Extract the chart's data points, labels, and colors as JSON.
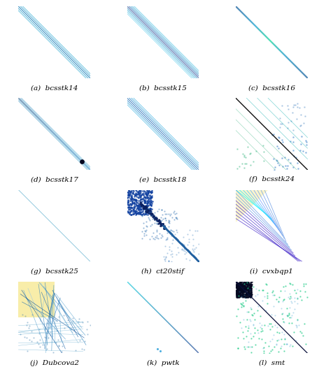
{
  "labels": [
    "(a)  bcsstk14",
    "(b)  bcsstk15",
    "(c)  bcsstk16",
    "(d)  bcsstk17",
    "(e)  bcsstk18",
    "(f)  bcsstk24",
    "(g)  bcsstk25",
    "(h)  ct20stif",
    "(i)  cvxbqp1",
    "(j)  Dubcova2",
    "(k)  pwtk",
    "(l)  smt"
  ]
}
